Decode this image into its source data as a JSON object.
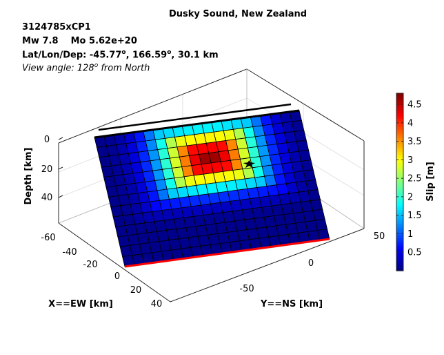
{
  "header": {
    "title": "Dusky Sound, New Zealand",
    "event_id": "3124785xCP1",
    "magnitude": "Mw 7.8",
    "moment": "Mo 5.62e+20",
    "location_prefix": "Lat/Lon/Dep: ",
    "lat": "-45.77",
    "lon": "166.59",
    "depth": "30.1 km",
    "view_prefix": "View angle: ",
    "view_value": "128",
    "view_suffix": " from North",
    "degree_symbol": "o"
  },
  "chart_data": {
    "type": "heatmap",
    "title": "Dusky Sound, New Zealand",
    "xlabel": "X==EW [km]",
    "ylabel": "Y==NS [km]",
    "zlabel": "Depth [km]",
    "x_ticks": [
      "-60",
      "-40",
      "-20",
      "0",
      "20",
      "40"
    ],
    "y_ticks": [
      "-50",
      "0",
      "50"
    ],
    "z_ticks": [
      "0",
      "20",
      "40"
    ],
    "colorbar": {
      "label": "Slip [m]",
      "ticks": [
        "0.5",
        "1",
        "1.5",
        "2",
        "2.5",
        "3",
        "3.5",
        "4",
        "4.5"
      ],
      "range": [
        0,
        4.8
      ],
      "colormap": "jet"
    },
    "grid": true,
    "view_azimuth_deg": 128,
    "fault": {
      "columns": 21,
      "rows": 13,
      "max_slip": 4.7,
      "peak_column": 11,
      "peak_row": 3.5,
      "hypocenter_marker": "star",
      "top_edge_color": "#000000",
      "bottom_edge_color": "#ff0000"
    }
  }
}
